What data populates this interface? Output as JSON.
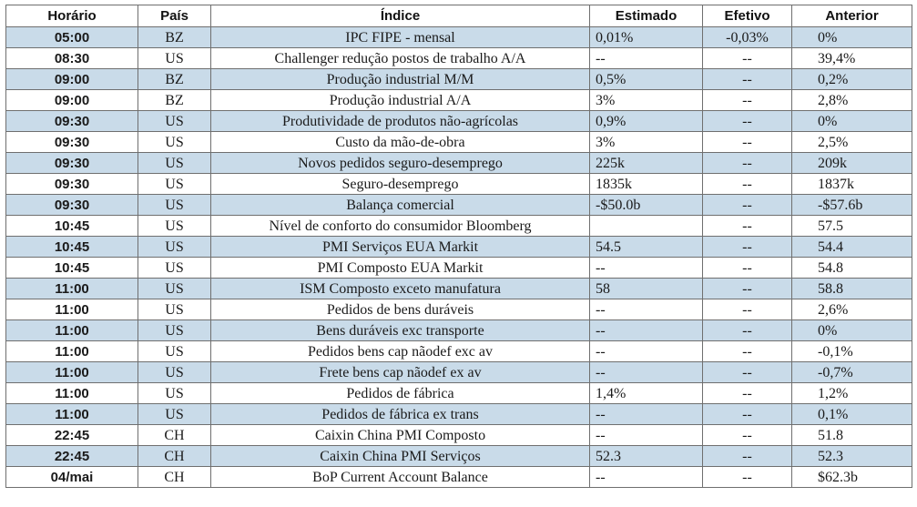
{
  "headers": {
    "time": "Horário",
    "country": "País",
    "index": "Índice",
    "estimated": "Estimado",
    "actual": "Efetivo",
    "previous": "Anterior"
  },
  "colors": {
    "shaded_row": "#c9dbe9",
    "plain_row": "#ffffff",
    "grid": "#6f6f6f"
  },
  "rows": [
    {
      "time": "05:00",
      "country": "BZ",
      "index": "IPC FIPE - mensal",
      "estimated": "0,01%",
      "actual": "-0,03%",
      "previous": "0%"
    },
    {
      "time": "08:30",
      "country": "US",
      "index": "Challenger redução postos de trabalho A/A",
      "estimated": "--",
      "actual": "--",
      "previous": "39,4%"
    },
    {
      "time": "09:00",
      "country": "BZ",
      "index": "Produção industrial M/M",
      "estimated": "0,5%",
      "actual": "--",
      "previous": "0,2%"
    },
    {
      "time": "09:00",
      "country": "BZ",
      "index": "Produção industrial A/A",
      "estimated": "3%",
      "actual": "--",
      "previous": "2,8%"
    },
    {
      "time": "09:30",
      "country": "US",
      "index": "Produtividade de produtos não-agrícolas",
      "estimated": "0,9%",
      "actual": "--",
      "previous": "0%"
    },
    {
      "time": "09:30",
      "country": "US",
      "index": "Custo da mão-de-obra",
      "estimated": "3%",
      "actual": "--",
      "previous": "2,5%"
    },
    {
      "time": "09:30",
      "country": "US",
      "index": "Novos pedidos seguro-desemprego",
      "estimated": "225k",
      "actual": "--",
      "previous": "209k"
    },
    {
      "time": "09:30",
      "country": "US",
      "index": "Seguro-desemprego",
      "estimated": "1835k",
      "actual": "--",
      "previous": "1837k"
    },
    {
      "time": "09:30",
      "country": "US",
      "index": "Balança comercial",
      "estimated": "-$50.0b",
      "actual": "--",
      "previous": "-$57.6b"
    },
    {
      "time": "10:45",
      "country": "US",
      "index": "Nível de conforto do consumidor Bloomberg",
      "estimated": "",
      "actual": "--",
      "previous": "57.5"
    },
    {
      "time": "10:45",
      "country": "US",
      "index": "PMI Serviços EUA Markit",
      "estimated": "54.5",
      "actual": "--",
      "previous": "54.4"
    },
    {
      "time": "10:45",
      "country": "US",
      "index": "PMI Composto EUA Markit",
      "estimated": "--",
      "actual": "--",
      "previous": "54.8"
    },
    {
      "time": "11:00",
      "country": "US",
      "index": "ISM Composto exceto manufatura",
      "estimated": "58",
      "actual": "--",
      "previous": "58.8"
    },
    {
      "time": "11:00",
      "country": "US",
      "index": "Pedidos de bens duráveis",
      "estimated": "--",
      "actual": "--",
      "previous": "2,6%"
    },
    {
      "time": "11:00",
      "country": "US",
      "index": "Bens duráveis exc transporte",
      "estimated": "--",
      "actual": "--",
      "previous": "0%"
    },
    {
      "time": "11:00",
      "country": "US",
      "index": "Pedidos bens cap nãodef exc av",
      "estimated": "--",
      "actual": "--",
      "previous": "-0,1%"
    },
    {
      "time": "11:00",
      "country": "US",
      "index": "Frete bens cap nãodef ex av",
      "estimated": "--",
      "actual": "--",
      "previous": "-0,7%"
    },
    {
      "time": "11:00",
      "country": "US",
      "index": "Pedidos de fábrica",
      "estimated": "1,4%",
      "actual": "--",
      "previous": "1,2%"
    },
    {
      "time": "11:00",
      "country": "US",
      "index": "Pedidos de fábrica ex trans",
      "estimated": "--",
      "actual": "--",
      "previous": "0,1%"
    },
    {
      "time": "22:45",
      "country": "CH",
      "index": "Caixin China PMI Composto",
      "estimated": "--",
      "actual": "--",
      "previous": "51.8"
    },
    {
      "time": "22:45",
      "country": "CH",
      "index": "Caixin China PMI Serviços",
      "estimated": "52.3",
      "actual": "--",
      "previous": "52.3"
    },
    {
      "time": "04/mai",
      "country": "CH",
      "index": "BoP Current Account Balance",
      "estimated": "--",
      "actual": "--",
      "previous": "$62.3b"
    }
  ]
}
